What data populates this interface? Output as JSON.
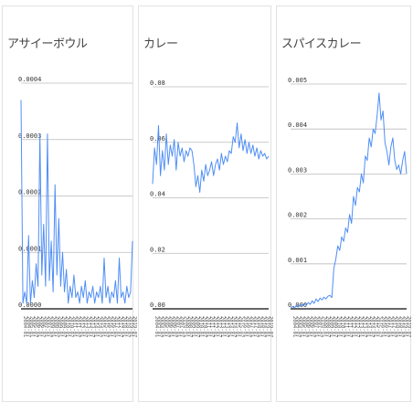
{
  "colors": {
    "line": "#4f8ef5",
    "grid": "#bbbbbb",
    "axis": "#333333"
  },
  "chart_data": [
    {
      "type": "line",
      "title": "アサイーボウル",
      "ylim": [
        0,
        0.0004
      ],
      "yticks": [
        "0.0000",
        "0.0001",
        "0.0002",
        "0.0003",
        "0.0004"
      ],
      "x_labels": [
        "2004-01",
        "2004-07",
        "2005-01",
        "2005-07",
        "2006-01",
        "2006-07",
        "2007-01",
        "2007-07",
        "2008-01",
        "2008-07",
        "2009-01",
        "2009-07",
        "2010-01",
        "2010-07",
        "2011-01",
        "2011-07",
        "2012-01",
        "2012-07",
        "2013-01",
        "2013-07",
        "2014-01",
        "2014-07",
        "2015-01",
        "2015-07",
        "2016-01",
        "2016-07",
        "2017-01",
        "2017-07",
        "2018-01",
        "2018-07",
        "2019-01",
        "2019-07"
      ],
      "values": [
        0.00037,
        1e-05,
        3e-05,
        1e-05,
        0.00013,
        1e-05,
        5e-05,
        2e-05,
        8e-05,
        4e-05,
        0.00031,
        6e-05,
        0.00015,
        4e-05,
        0.00031,
        5e-05,
        0.00012,
        3e-05,
        0.00022,
        6e-05,
        0.00016,
        4e-05,
        0.0001,
        3e-05,
        7e-05,
        1e-05,
        4e-05,
        2e-05,
        6e-05,
        2e-05,
        3e-05,
        1e-05,
        4e-05,
        2e-05,
        5e-05,
        1e-05,
        3e-05,
        2e-05,
        4e-05,
        1e-05,
        3e-05,
        2e-05,
        4e-05,
        1e-05,
        9e-05,
        2e-05,
        4e-05,
        1e-05,
        3e-05,
        2e-05,
        5e-05,
        1e-05,
        9e-05,
        2e-05,
        3e-05,
        1e-05,
        4e-05,
        2e-05,
        3e-05,
        0.00012
      ]
    },
    {
      "type": "line",
      "title": "カレー",
      "ylim": [
        0,
        0.08
      ],
      "yticks": [
        "0.00",
        "0.02",
        "0.04",
        "0.06",
        "0.08"
      ],
      "x_labels": [
        "2004-01",
        "2004-07",
        "2005-01",
        "2005-07",
        "2006-01",
        "2006-07",
        "2007-01",
        "2007-07",
        "2008-01",
        "2008-07",
        "2009-01",
        "2009-07",
        "2010-01",
        "2010-07",
        "2011-01",
        "2011-07",
        "2012-01",
        "2012-07",
        "2013-01",
        "2013-07",
        "2014-01",
        "2014-07",
        "2015-01",
        "2015-07",
        "2016-01",
        "2016-07",
        "2017-01",
        "2017-07",
        "2018-01",
        "2018-07",
        "2019-01",
        "2019-07"
      ],
      "values": [
        0.045,
        0.058,
        0.052,
        0.066,
        0.048,
        0.057,
        0.05,
        0.063,
        0.052,
        0.059,
        0.055,
        0.061,
        0.05,
        0.06,
        0.055,
        0.058,
        0.053,
        0.057,
        0.055,
        0.058,
        0.057,
        0.052,
        0.044,
        0.048,
        0.042,
        0.05,
        0.046,
        0.052,
        0.048,
        0.05,
        0.053,
        0.048,
        0.052,
        0.054,
        0.05,
        0.056,
        0.052,
        0.055,
        0.053,
        0.057,
        0.056,
        0.062,
        0.06,
        0.067,
        0.058,
        0.063,
        0.057,
        0.061,
        0.056,
        0.06,
        0.056,
        0.059,
        0.055,
        0.058,
        0.054,
        0.057,
        0.055,
        0.056,
        0.054,
        0.055
      ]
    },
    {
      "type": "line",
      "title": "スパイスカレー",
      "ylim": [
        0,
        0.005
      ],
      "yticks": [
        "0.000",
        "0.001",
        "0.002",
        "0.003",
        "0.004",
        "0.005"
      ],
      "x_labels": [
        "2004-01",
        "2004-07",
        "2005-01",
        "2005-07",
        "2006-01",
        "2006-07",
        "2007-01",
        "2007-07",
        "2008-01",
        "2008-07",
        "2009-01",
        "2009-07",
        "2010-01",
        "2010-07",
        "2011-01",
        "2011-07",
        "2012-01",
        "2012-07",
        "2013-01",
        "2013-07",
        "2014-01",
        "2014-07",
        "2015-01",
        "2015-07",
        "2016-01",
        "2016-07",
        "2017-01",
        "2017-07",
        "2018-01",
        "2018-07",
        "2019-01",
        "2019-07"
      ],
      "values": [
        2e-05,
        5e-05,
        2e-05,
        8e-05,
        4e-05,
        0.0001,
        6e-05,
        0.00012,
        8e-05,
        0.00014,
        0.0001,
        0.00018,
        0.00012,
        0.00022,
        0.00016,
        0.00024,
        0.0002,
        0.00026,
        0.00022,
        0.00028,
        0.0003,
        0.00025,
        0.0009,
        0.0011,
        0.0014,
        0.0013,
        0.0016,
        0.0015,
        0.0018,
        0.0017,
        0.0021,
        0.0019,
        0.0025,
        0.0023,
        0.0027,
        0.0026,
        0.003,
        0.0028,
        0.0034,
        0.0033,
        0.0038,
        0.0036,
        0.004,
        0.0039,
        0.0043,
        0.0048,
        0.0042,
        0.0044,
        0.0037,
        0.0035,
        0.0032,
        0.0036,
        0.0038,
        0.0033,
        0.0031,
        0.0032,
        0.003,
        0.0033,
        0.0035,
        0.003
      ]
    }
  ]
}
